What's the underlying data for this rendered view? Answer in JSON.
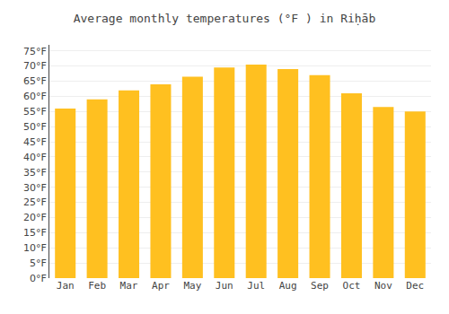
{
  "chart_data": {
    "type": "bar",
    "title": "Average monthly temperatures (°F ) in Riḥāb",
    "categories": [
      "Jan",
      "Feb",
      "Mar",
      "Apr",
      "May",
      "Jun",
      "Jul",
      "Aug",
      "Sep",
      "Oct",
      "Nov",
      "Dec"
    ],
    "values": [
      56,
      59,
      62,
      64,
      66.5,
      69.5,
      70.5,
      69,
      67,
      61,
      56.5,
      55
    ],
    "color": "#FFC020",
    "ylim": [
      0,
      77
    ],
    "yticks": [
      {
        "value": 0,
        "label": "0°F"
      },
      {
        "value": 5,
        "label": "5°F"
      },
      {
        "value": 10,
        "label": "10°F"
      },
      {
        "value": 15,
        "label": "15°F"
      },
      {
        "value": 20,
        "label": "20°F"
      },
      {
        "value": 25,
        "label": "25°F"
      },
      {
        "value": 30,
        "label": "30°F"
      },
      {
        "value": 35,
        "label": "35°F"
      },
      {
        "value": 40,
        "label": "40°F"
      },
      {
        "value": 45,
        "label": "45°F"
      },
      {
        "value": 50,
        "label": "50°F"
      },
      {
        "value": 55,
        "label": "55°F"
      },
      {
        "value": 60,
        "label": "60°F"
      },
      {
        "value": 65,
        "label": "65°F"
      },
      {
        "value": 70,
        "label": "70°F"
      },
      {
        "value": 75,
        "label": "75°F"
      }
    ],
    "grid": true
  }
}
